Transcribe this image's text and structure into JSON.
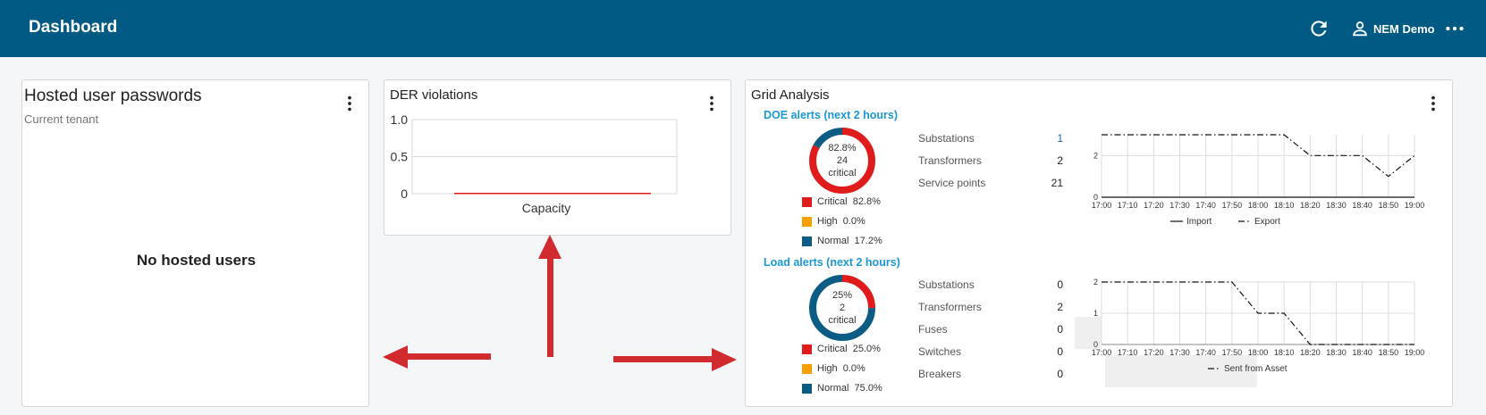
{
  "header": {
    "title": "Dashboard",
    "user_name": "NEM Demo",
    "icons": {
      "refresh": "refresh-icon",
      "user": "person-icon",
      "more": "more-horizontal-icon"
    }
  },
  "colors": {
    "brand": "#005a84",
    "critical": "#e01b1b",
    "high": "#f5a000",
    "normal": "#0b5c84",
    "link": "#1a98d3",
    "arrow": "#d12a2f"
  },
  "hosted_passwords": {
    "title": "Hosted user passwords",
    "subtitle": "Current tenant",
    "empty_text": "No hosted users"
  },
  "der_violations": {
    "title": "DER violations",
    "chart_data": {
      "type": "bar",
      "categories": [
        "Capacity"
      ],
      "values": [
        0
      ],
      "ylim": [
        0,
        1
      ],
      "yticks": [
        "1.0",
        "0.5",
        "0"
      ],
      "xlabel": "Capacity",
      "grid": true
    }
  },
  "grid_analysis": {
    "title": "Grid Analysis",
    "doe": {
      "title": "DOE alerts (next 2 hours)",
      "donut": {
        "percent": "82.8%",
        "count": "24",
        "label": "critical",
        "fractions": {
          "critical": 0.828,
          "high": 0.0,
          "normal": 0.172
        }
      },
      "legend": [
        {
          "name": "Critical",
          "value": "82.8%"
        },
        {
          "name": "High",
          "value": "0.0%"
        },
        {
          "name": "Normal",
          "value": "17.2%"
        }
      ],
      "stats": [
        {
          "label": "Substations",
          "value": "1"
        },
        {
          "label": "Transformers",
          "value": "2"
        },
        {
          "label": "Service points",
          "value": "21"
        }
      ],
      "chart_data": {
        "type": "line",
        "x": [
          "17:00",
          "17:10",
          "17:20",
          "17:30",
          "17:40",
          "17:50",
          "18:00",
          "18:10",
          "18:20",
          "18:30",
          "18:40",
          "18:50",
          "19:00"
        ],
        "yticks": [
          "0",
          "2"
        ],
        "ylim": [
          0,
          3
        ],
        "series": [
          {
            "name": "Import",
            "values": [
              0,
              0,
              0,
              0,
              0,
              0,
              0,
              0,
              0,
              0,
              0,
              0,
              0
            ]
          },
          {
            "name": "Export",
            "values": [
              3,
              3,
              3,
              3,
              3,
              3,
              3,
              3,
              2,
              2,
              2,
              1,
              2
            ]
          }
        ]
      }
    },
    "load": {
      "title": "Load alerts (next 2 hours)",
      "donut": {
        "percent": "25%",
        "count": "2",
        "label": "critical",
        "fractions": {
          "critical": 0.25,
          "high": 0.0,
          "normal": 0.75
        }
      },
      "legend": [
        {
          "name": "Critical",
          "value": "25.0%"
        },
        {
          "name": "High",
          "value": "0.0%"
        },
        {
          "name": "Normal",
          "value": "75.0%"
        }
      ],
      "stats": [
        {
          "label": "Substations",
          "value": "0"
        },
        {
          "label": "Transformers",
          "value": "2"
        },
        {
          "label": "Fuses",
          "value": "0"
        },
        {
          "label": "Switches",
          "value": "0"
        },
        {
          "label": "Breakers",
          "value": "0"
        }
      ],
      "chart_data": {
        "type": "line",
        "x": [
          "17:00",
          "17:10",
          "17:20",
          "17:30",
          "17:40",
          "17:50",
          "18:00",
          "18:10",
          "18:20",
          "18:30",
          "18:40",
          "18:50",
          "19:00"
        ],
        "yticks": [
          "0",
          "1",
          "2"
        ],
        "ylim": [
          0,
          2
        ],
        "series": [
          {
            "name": "Sent from Asset",
            "values": [
              2,
              2,
              2,
              2,
              2,
              2,
              1,
              1,
              0,
              0,
              0,
              0,
              0
            ]
          }
        ]
      }
    }
  }
}
